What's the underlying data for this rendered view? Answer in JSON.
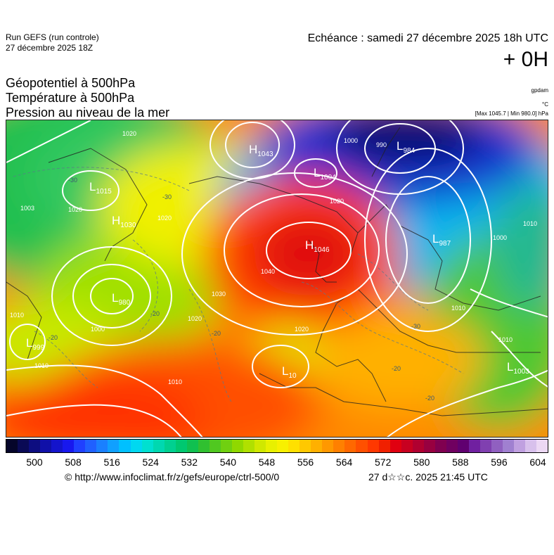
{
  "header": {
    "run_line1": "Run GEFS (run controle)",
    "run_line2": "27 décembre 2025 18Z",
    "echeance": "Echéance : samedi 27 décembre 2025 18h UTC",
    "hour": "+ 0H"
  },
  "params": [
    {
      "label": "Géopotentiel à 500hPa",
      "unit": "gpdam"
    },
    {
      "label": "Température à 500hPa",
      "unit": "°C"
    },
    {
      "label": "Pression au niveau de la mer",
      "unit": "[Max 1045.7 | Min 980.0] hPa"
    }
  ],
  "pressure_centers": [
    {
      "type": "H",
      "value": "1043"
    },
    {
      "type": "L",
      "value": "984"
    },
    {
      "type": "L",
      "value": "1004"
    },
    {
      "type": "L",
      "value": "1015"
    },
    {
      "type": "H",
      "value": "1030"
    },
    {
      "type": "H",
      "value": "1046"
    },
    {
      "type": "L",
      "value": "987"
    },
    {
      "type": "L",
      "value": "980"
    },
    {
      "type": "L",
      "value": "999"
    },
    {
      "type": "L",
      "value": "10"
    },
    {
      "type": "L",
      "value": "1003"
    }
  ],
  "isobar_labels": [
    "1020",
    "1020",
    "1010",
    "1000",
    "1010",
    "1020",
    "1030",
    "1040",
    "1020",
    "1020",
    "1000",
    "1010",
    "1010",
    "1010",
    "1010",
    "1000",
    "990",
    "1003",
    "1020"
  ],
  "temperature_labels": [
    "-30",
    "-30",
    "-20",
    "-20",
    "-20",
    "-20",
    "-30",
    "-20"
  ],
  "colorbar": {
    "ticks": [
      "500",
      "508",
      "516",
      "524",
      "532",
      "540",
      "548",
      "556",
      "564",
      "572",
      "580",
      "588",
      "596",
      "604"
    ],
    "colors": [
      "#05052a",
      "#0a0a55",
      "#0d0d80",
      "#1010a8",
      "#1414cc",
      "#1818ee",
      "#2040ff",
      "#2060ff",
      "#1a80ff",
      "#10a0ff",
      "#00c0ff",
      "#00d8f0",
      "#00e0d0",
      "#00d8b0",
      "#00d090",
      "#00c870",
      "#10c050",
      "#30c030",
      "#50c820",
      "#70d010",
      "#90d800",
      "#b0e000",
      "#d0e800",
      "#e8f000",
      "#f8f000",
      "#ffe000",
      "#ffc800",
      "#ffb000",
      "#ff9800",
      "#ff8000",
      "#ff6800",
      "#ff5000",
      "#ff3800",
      "#f02000",
      "#e00010",
      "#c80020",
      "#b00030",
      "#980040",
      "#800050",
      "#700060",
      "#600070",
      "#7020a0",
      "#8040b0",
      "#9060c0",
      "#a080d0",
      "#c0a0e0",
      "#d8c0ec",
      "#ecd8f4"
    ]
  },
  "footer": {
    "url": "© http://www.infoclimat.fr/z/gefs/europe/ctrl-500/0",
    "timestamp": "27 d☆☆c. 2025 21:45 UTC"
  }
}
